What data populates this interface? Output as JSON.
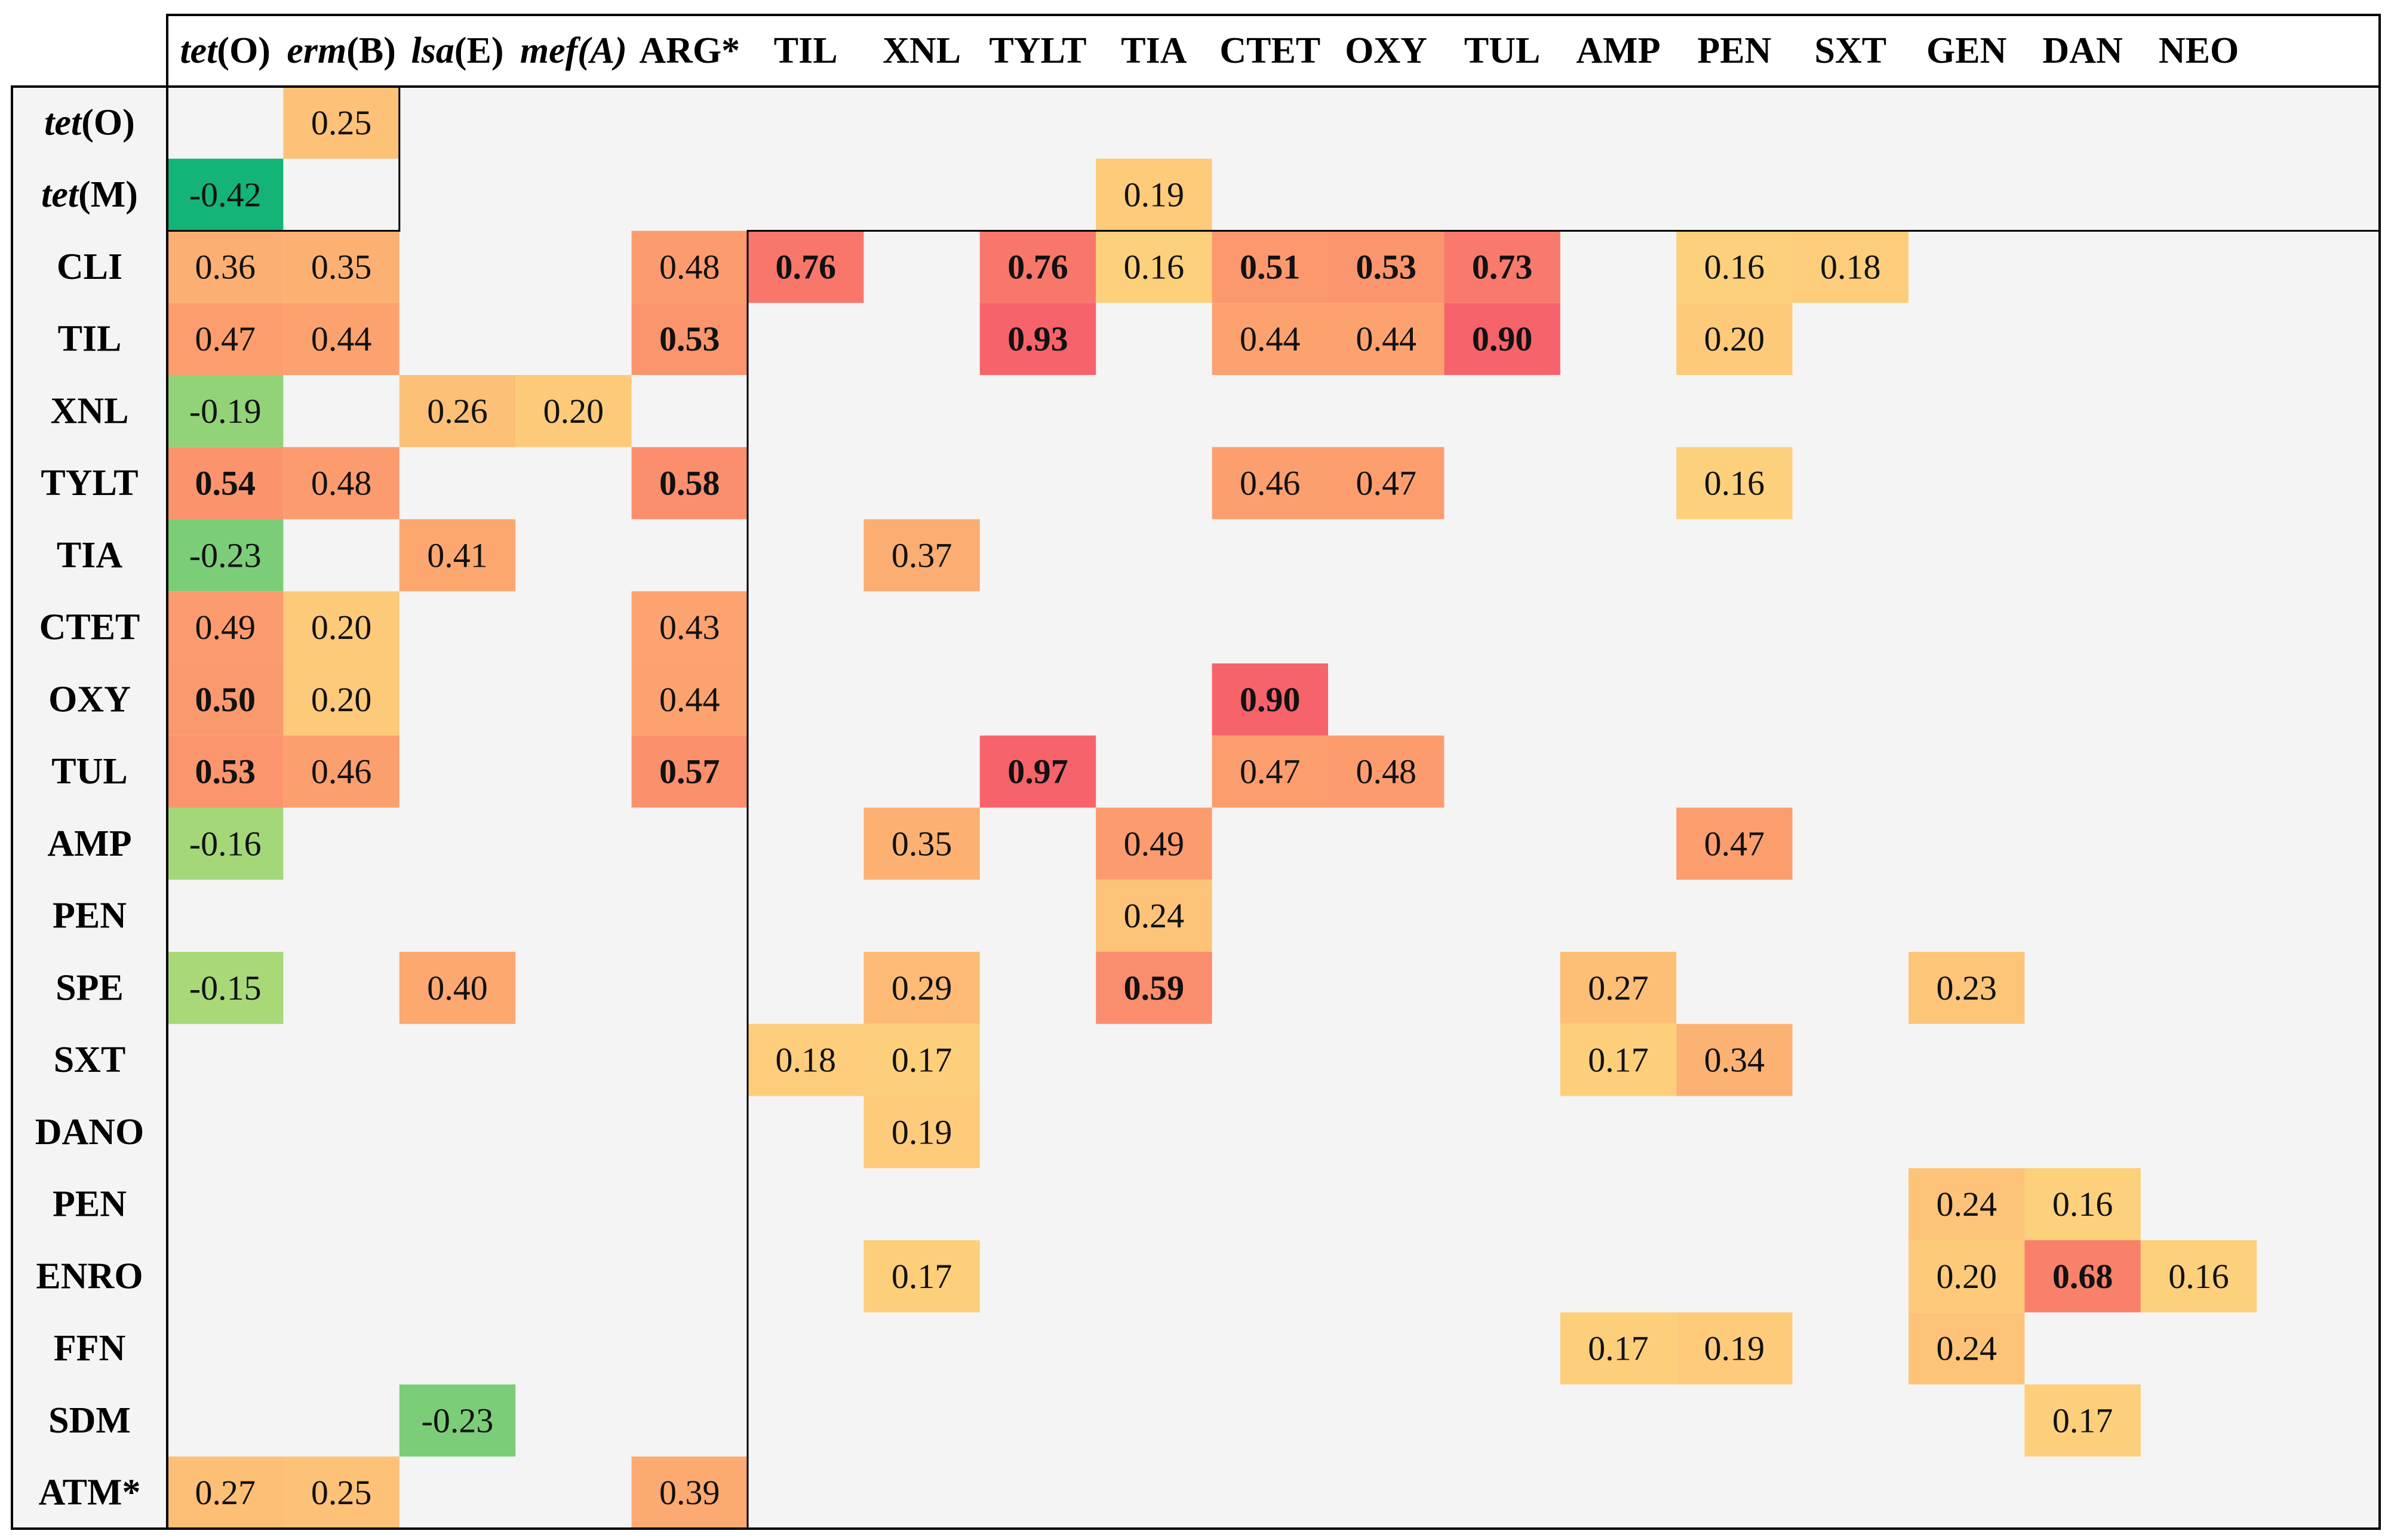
{
  "chart_data": {
    "type": "heatmap",
    "title": "",
    "columns": [
      {
        "parts": [
          {
            "text": "tet",
            "italic": true
          },
          {
            "text": "(O)",
            "italic": false
          }
        ]
      },
      {
        "parts": [
          {
            "text": "erm",
            "italic": true
          },
          {
            "text": "(B)",
            "italic": false
          }
        ]
      },
      {
        "parts": [
          {
            "text": "lsa",
            "italic": true
          },
          {
            "text": "(E)",
            "italic": false
          }
        ]
      },
      {
        "parts": [
          {
            "text": "mef(A)",
            "italic": true
          }
        ]
      },
      {
        "parts": [
          {
            "text": "ARG*",
            "italic": false
          }
        ]
      },
      {
        "parts": [
          {
            "text": "TIL",
            "italic": false
          }
        ]
      },
      {
        "parts": [
          {
            "text": "XNL",
            "italic": false
          }
        ]
      },
      {
        "parts": [
          {
            "text": "TYLT",
            "italic": false
          }
        ]
      },
      {
        "parts": [
          {
            "text": "TIA",
            "italic": false
          }
        ]
      },
      {
        "parts": [
          {
            "text": "CTET",
            "italic": false
          }
        ]
      },
      {
        "parts": [
          {
            "text": "OXY",
            "italic": false
          }
        ]
      },
      {
        "parts": [
          {
            "text": "TUL",
            "italic": false
          }
        ]
      },
      {
        "parts": [
          {
            "text": "AMP",
            "italic": false
          }
        ]
      },
      {
        "parts": [
          {
            "text": "PEN",
            "italic": false
          }
        ]
      },
      {
        "parts": [
          {
            "text": "SXT",
            "italic": false
          }
        ]
      },
      {
        "parts": [
          {
            "text": "GEN",
            "italic": false
          }
        ]
      },
      {
        "parts": [
          {
            "text": "DAN",
            "italic": false
          }
        ]
      },
      {
        "parts": [
          {
            "text": "NEO",
            "italic": false
          }
        ]
      }
    ],
    "rows": [
      {
        "parts": [
          {
            "text": "tet",
            "italic": true
          },
          {
            "text": "(O)",
            "italic": false
          }
        ]
      },
      {
        "parts": [
          {
            "text": "tet",
            "italic": true
          },
          {
            "text": "(M)",
            "italic": false
          }
        ]
      },
      {
        "parts": [
          {
            "text": "CLI",
            "italic": false
          }
        ]
      },
      {
        "parts": [
          {
            "text": "TIL",
            "italic": false
          }
        ]
      },
      {
        "parts": [
          {
            "text": "XNL",
            "italic": false
          }
        ]
      },
      {
        "parts": [
          {
            "text": "TYLT",
            "italic": false
          }
        ]
      },
      {
        "parts": [
          {
            "text": "TIA",
            "italic": false
          }
        ]
      },
      {
        "parts": [
          {
            "text": "CTET",
            "italic": false
          }
        ]
      },
      {
        "parts": [
          {
            "text": "OXY",
            "italic": false
          }
        ]
      },
      {
        "parts": [
          {
            "text": "TUL",
            "italic": false
          }
        ]
      },
      {
        "parts": [
          {
            "text": "AMP",
            "italic": false
          }
        ]
      },
      {
        "parts": [
          {
            "text": "PEN",
            "italic": false
          }
        ]
      },
      {
        "parts": [
          {
            "text": "SPE",
            "italic": false
          }
        ]
      },
      {
        "parts": [
          {
            "text": "SXT",
            "italic": false
          }
        ]
      },
      {
        "parts": [
          {
            "text": "DANO",
            "italic": false
          }
        ]
      },
      {
        "parts": [
          {
            "text": "PEN",
            "italic": false
          }
        ]
      },
      {
        "parts": [
          {
            "text": "ENRO",
            "italic": false
          }
        ]
      },
      {
        "parts": [
          {
            "text": "FFN",
            "italic": false
          }
        ]
      },
      {
        "parts": [
          {
            "text": "SDM",
            "italic": false
          }
        ]
      },
      {
        "parts": [
          {
            "text": "ATM*",
            "italic": false
          }
        ]
      }
    ],
    "cells": [
      {
        "row": 0,
        "col": 1,
        "value": 0.25,
        "label": "0.25",
        "bold": false
      },
      {
        "row": 1,
        "col": 0,
        "value": -0.42,
        "label": "-0.42",
        "bold": false
      },
      {
        "row": 1,
        "col": 8,
        "value": 0.19,
        "label": "0.19",
        "bold": false
      },
      {
        "row": 2,
        "col": 0,
        "value": 0.36,
        "label": "0.36",
        "bold": false
      },
      {
        "row": 2,
        "col": 1,
        "value": 0.35,
        "label": "0.35",
        "bold": false
      },
      {
        "row": 2,
        "col": 4,
        "value": 0.48,
        "label": "0.48",
        "bold": false
      },
      {
        "row": 2,
        "col": 5,
        "value": 0.76,
        "label": "0.76",
        "bold": true
      },
      {
        "row": 2,
        "col": 7,
        "value": 0.76,
        "label": "0.76",
        "bold": true
      },
      {
        "row": 2,
        "col": 8,
        "value": 0.16,
        "label": "0.16",
        "bold": false
      },
      {
        "row": 2,
        "col": 9,
        "value": 0.51,
        "label": "0.51",
        "bold": true
      },
      {
        "row": 2,
        "col": 10,
        "value": 0.53,
        "label": "0.53",
        "bold": true
      },
      {
        "row": 2,
        "col": 11,
        "value": 0.73,
        "label": "0.73",
        "bold": true
      },
      {
        "row": 2,
        "col": 13,
        "value": 0.16,
        "label": "0.16",
        "bold": false
      },
      {
        "row": 2,
        "col": 14,
        "value": 0.18,
        "label": "0.18",
        "bold": false
      },
      {
        "row": 3,
        "col": 0,
        "value": 0.47,
        "label": "0.47",
        "bold": false
      },
      {
        "row": 3,
        "col": 1,
        "value": 0.44,
        "label": "0.44",
        "bold": false
      },
      {
        "row": 3,
        "col": 4,
        "value": 0.53,
        "label": "0.53",
        "bold": true
      },
      {
        "row": 3,
        "col": 7,
        "value": 0.93,
        "label": "0.93",
        "bold": true
      },
      {
        "row": 3,
        "col": 9,
        "value": 0.44,
        "label": "0.44",
        "bold": false
      },
      {
        "row": 3,
        "col": 10,
        "value": 0.44,
        "label": "0.44",
        "bold": false
      },
      {
        "row": 3,
        "col": 11,
        "value": 0.9,
        "label": "0.90",
        "bold": true
      },
      {
        "row": 3,
        "col": 13,
        "value": 0.2,
        "label": "0.20",
        "bold": false
      },
      {
        "row": 4,
        "col": 0,
        "value": -0.19,
        "label": "-0.19",
        "bold": false
      },
      {
        "row": 4,
        "col": 2,
        "value": 0.26,
        "label": "0.26",
        "bold": false
      },
      {
        "row": 4,
        "col": 3,
        "value": 0.2,
        "label": "0.20",
        "bold": false
      },
      {
        "row": 5,
        "col": 0,
        "value": 0.54,
        "label": "0.54",
        "bold": true
      },
      {
        "row": 5,
        "col": 1,
        "value": 0.48,
        "label": "0.48",
        "bold": false
      },
      {
        "row": 5,
        "col": 4,
        "value": 0.58,
        "label": "0.58",
        "bold": true
      },
      {
        "row": 5,
        "col": 9,
        "value": 0.46,
        "label": "0.46",
        "bold": false
      },
      {
        "row": 5,
        "col": 10,
        "value": 0.47,
        "label": "0.47",
        "bold": false
      },
      {
        "row": 5,
        "col": 13,
        "value": 0.16,
        "label": "0.16",
        "bold": false
      },
      {
        "row": 6,
        "col": 0,
        "value": -0.23,
        "label": "-0.23",
        "bold": false
      },
      {
        "row": 6,
        "col": 2,
        "value": 0.41,
        "label": "0.41",
        "bold": false
      },
      {
        "row": 6,
        "col": 6,
        "value": 0.37,
        "label": "0.37",
        "bold": false
      },
      {
        "row": 7,
        "col": 0,
        "value": 0.49,
        "label": "0.49",
        "bold": false
      },
      {
        "row": 7,
        "col": 1,
        "value": 0.2,
        "label": "0.20",
        "bold": false
      },
      {
        "row": 7,
        "col": 4,
        "value": 0.43,
        "label": "0.43",
        "bold": false
      },
      {
        "row": 8,
        "col": 0,
        "value": 0.5,
        "label": "0.50",
        "bold": true
      },
      {
        "row": 8,
        "col": 1,
        "value": 0.2,
        "label": "0.20",
        "bold": false
      },
      {
        "row": 8,
        "col": 4,
        "value": 0.44,
        "label": "0.44",
        "bold": false
      },
      {
        "row": 8,
        "col": 9,
        "value": 0.9,
        "label": "0.90",
        "bold": true
      },
      {
        "row": 9,
        "col": 0,
        "value": 0.53,
        "label": "0.53",
        "bold": true
      },
      {
        "row": 9,
        "col": 1,
        "value": 0.46,
        "label": "0.46",
        "bold": false
      },
      {
        "row": 9,
        "col": 4,
        "value": 0.57,
        "label": "0.57",
        "bold": true
      },
      {
        "row": 9,
        "col": 7,
        "value": 0.97,
        "label": "0.97",
        "bold": true
      },
      {
        "row": 9,
        "col": 9,
        "value": 0.47,
        "label": "0.47",
        "bold": false
      },
      {
        "row": 9,
        "col": 10,
        "value": 0.48,
        "label": "0.48",
        "bold": false
      },
      {
        "row": 10,
        "col": 0,
        "value": -0.16,
        "label": "-0.16",
        "bold": false
      },
      {
        "row": 10,
        "col": 6,
        "value": 0.35,
        "label": "0.35",
        "bold": false
      },
      {
        "row": 10,
        "col": 8,
        "value": 0.49,
        "label": "0.49",
        "bold": false
      },
      {
        "row": 10,
        "col": 13,
        "value": 0.47,
        "label": "0.47",
        "bold": false
      },
      {
        "row": 11,
        "col": 8,
        "value": 0.24,
        "label": "0.24",
        "bold": false
      },
      {
        "row": 12,
        "col": 0,
        "value": -0.15,
        "label": "-0.15",
        "bold": false
      },
      {
        "row": 12,
        "col": 2,
        "value": 0.4,
        "label": "0.40",
        "bold": false
      },
      {
        "row": 12,
        "col": 6,
        "value": 0.29,
        "label": "0.29",
        "bold": false
      },
      {
        "row": 12,
        "col": 8,
        "value": 0.59,
        "label": "0.59",
        "bold": true
      },
      {
        "row": 12,
        "col": 12,
        "value": 0.27,
        "label": "0.27",
        "bold": false
      },
      {
        "row": 12,
        "col": 15,
        "value": 0.23,
        "label": "0.23",
        "bold": false
      },
      {
        "row": 13,
        "col": 5,
        "value": 0.18,
        "label": "0.18",
        "bold": false
      },
      {
        "row": 13,
        "col": 6,
        "value": 0.17,
        "label": "0.17",
        "bold": false
      },
      {
        "row": 13,
        "col": 12,
        "value": 0.17,
        "label": "0.17",
        "bold": false
      },
      {
        "row": 13,
        "col": 13,
        "value": 0.34,
        "label": "0.34",
        "bold": false
      },
      {
        "row": 14,
        "col": 6,
        "value": 0.19,
        "label": "0.19",
        "bold": false
      },
      {
        "row": 15,
        "col": 15,
        "value": 0.24,
        "label": "0.24",
        "bold": false
      },
      {
        "row": 15,
        "col": 16,
        "value": 0.16,
        "label": "0.16",
        "bold": false
      },
      {
        "row": 16,
        "col": 6,
        "value": 0.17,
        "label": "0.17",
        "bold": false
      },
      {
        "row": 16,
        "col": 15,
        "value": 0.2,
        "label": "0.20",
        "bold": false
      },
      {
        "row": 16,
        "col": 16,
        "value": 0.68,
        "label": "0.68",
        "bold": true
      },
      {
        "row": 16,
        "col": 17,
        "value": 0.16,
        "label": "0.16",
        "bold": false
      },
      {
        "row": 17,
        "col": 12,
        "value": 0.17,
        "label": "0.17",
        "bold": false
      },
      {
        "row": 17,
        "col": 13,
        "value": 0.19,
        "label": "0.19",
        "bold": false
      },
      {
        "row": 17,
        "col": 15,
        "value": 0.24,
        "label": "0.24",
        "bold": false
      },
      {
        "row": 18,
        "col": 2,
        "value": -0.23,
        "label": "-0.23",
        "bold": false
      },
      {
        "row": 18,
        "col": 16,
        "value": 0.17,
        "label": "0.17",
        "bold": false
      },
      {
        "row": 19,
        "col": 0,
        "value": 0.27,
        "label": "0.27",
        "bold": false
      },
      {
        "row": 19,
        "col": 1,
        "value": 0.25,
        "label": "0.25",
        "bold": false
      },
      {
        "row": 19,
        "col": 4,
        "value": 0.39,
        "label": "0.39",
        "bold": false
      }
    ],
    "color_scale": {
      "background": "#f4f4f4",
      "negative_strong": "#14b377",
      "negative_weak": "#a8d878",
      "positive_weak": "#fdd27c",
      "positive_mid": "#fca06e",
      "positive_strong": "#f7636a"
    }
  }
}
